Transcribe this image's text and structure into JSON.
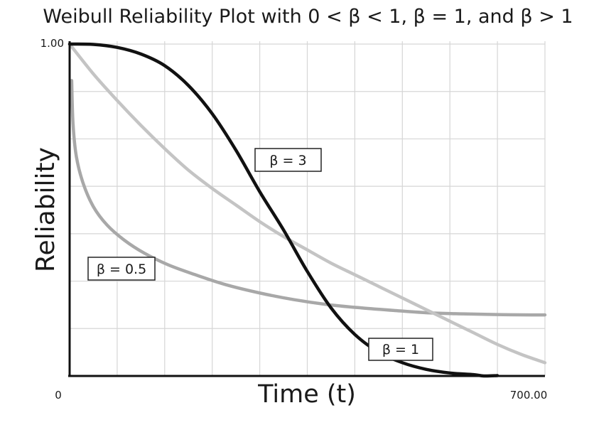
{
  "chart_data": {
    "type": "line",
    "title": "Weibull Reliability Plot with 0 < β < 1, β = 1, and β > 1",
    "xlabel": "Time (t)",
    "ylabel": "Reliability",
    "xlim": [
      0,
      700
    ],
    "ylim": [
      0,
      1
    ],
    "x_tick_labels": [
      "0",
      "700.00"
    ],
    "y_tick_labels": [
      "1.00"
    ],
    "grid": true,
    "series": [
      {
        "name": "β = 3",
        "color": "#111111",
        "x": [
          0,
          35,
          70,
          105,
          140,
          175,
          210,
          245,
          280,
          315,
          350,
          385,
          420,
          455,
          490,
          525,
          560,
          595,
          630,
          610
        ],
        "y": [
          1.0,
          0.999,
          0.99,
          0.97,
          0.935,
          0.875,
          0.79,
          0.68,
          0.555,
          0.44,
          0.315,
          0.205,
          0.125,
          0.072,
          0.04,
          0.02,
          0.009,
          0.004,
          0.001,
          0.0
        ]
      },
      {
        "name": "β = 1",
        "color": "#c4c4c4",
        "x": [
          0,
          35,
          70,
          105,
          140,
          175,
          210,
          245,
          280,
          315,
          350,
          385,
          420,
          455,
          490,
          525,
          560,
          595,
          630,
          665,
          700
        ],
        "y": [
          1.0,
          0.91,
          0.83,
          0.755,
          0.685,
          0.62,
          0.565,
          0.515,
          0.465,
          0.42,
          0.38,
          0.34,
          0.305,
          0.27,
          0.235,
          0.2,
          0.165,
          0.13,
          0.095,
          0.065,
          0.04
        ]
      },
      {
        "name": "β = 0.5",
        "color": "#a8a8a8",
        "x": [
          3,
          5,
          10,
          20,
          35,
          55,
          80,
          110,
          145,
          185,
          230,
          280,
          330,
          380,
          430,
          480,
          530,
          580,
          630,
          680,
          700
        ],
        "y": [
          0.89,
          0.76,
          0.66,
          0.58,
          0.51,
          0.455,
          0.41,
          0.37,
          0.335,
          0.305,
          0.275,
          0.25,
          0.23,
          0.215,
          0.205,
          0.197,
          0.19,
          0.187,
          0.185,
          0.184,
          0.184
        ]
      }
    ],
    "annotations": [
      "β = 3",
      "β = 0.5",
      "β = 1"
    ]
  }
}
